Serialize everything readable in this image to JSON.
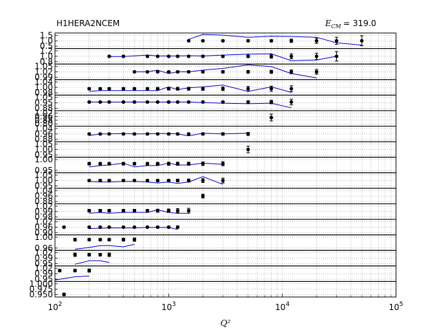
{
  "chart_data": {
    "type": "scatter",
    "title": "H1HERA2NCEM",
    "energy_label": "E_CM = 319.0",
    "energy_symbol": "E",
    "energy_subscript": "CM",
    "energy_value": "= 319.0",
    "xlabel": "Q²",
    "x_scale": "log",
    "xlim": [
      100,
      100000
    ],
    "x_ticks": [
      {
        "value": 100,
        "base": "10",
        "exp": "2"
      },
      {
        "value": 1000,
        "base": "10",
        "exp": "3"
      },
      {
        "value": 10000,
        "base": "10",
        "exp": "4"
      },
      {
        "value": 100000,
        "base": "10",
        "exp": "5"
      }
    ],
    "grid": true,
    "series_style": {
      "data": "black points with error bars",
      "theory": "blue line"
    },
    "panels": [
      {
        "ylim": [
          0.45,
          1.55
        ],
        "yticks": [
          "1.5",
          "1.0",
          "0.5"
        ],
        "x": [
          1500,
          2000,
          3000,
          5000,
          8000,
          12000,
          20000,
          30000,
          50000
        ],
        "y": [
          1.0,
          1.0,
          1.0,
          1.0,
          1.0,
          1.0,
          1.0,
          1.0,
          1.0
        ],
        "err": [
          0.04,
          0.05,
          0.06,
          0.07,
          0.08,
          0.12,
          0.18,
          0.25,
          0.35
        ],
        "theory_x": [
          1500,
          2000,
          3000,
          5000,
          8000,
          12000,
          20000,
          30000,
          50000
        ],
        "theory": [
          1.1,
          1.45,
          1.4,
          1.25,
          1.32,
          1.3,
          1.25,
          0.85,
          0.7
        ]
      },
      {
        "ylim": [
          0.75,
          1.25
        ],
        "yticks": [
          "1.2",
          "1.0",
          "0.8"
        ],
        "x": [
          300,
          400,
          650,
          800,
          1000,
          1200,
          1500,
          2000,
          3000,
          5000,
          8000,
          12000,
          20000,
          30000
        ],
        "y": [
          1.0,
          1.0,
          1.0,
          1.0,
          1.0,
          1.0,
          1.0,
          1.0,
          1.0,
          1.0,
          1.0,
          1.0,
          1.0,
          1.0
        ],
        "err": [
          0.02,
          0.02,
          0.02,
          0.02,
          0.02,
          0.02,
          0.02,
          0.03,
          0.03,
          0.04,
          0.06,
          0.08,
          0.1,
          0.15
        ],
        "theory_x": [
          300,
          400,
          650,
          800,
          1000,
          1200,
          1500,
          2000,
          3000,
          5000,
          8000,
          12000,
          20000,
          30000
        ],
        "theory": [
          0.99,
          0.99,
          1.04,
          1.01,
          1.01,
          1.01,
          1.02,
          1.01,
          1.04,
          1.07,
          1.08,
          0.86,
          0.88,
          1.0
        ]
      },
      {
        "ylim": [
          0.975,
          1.065
        ],
        "yticks": [
          "1.05",
          "1.02",
          "0.99"
        ],
        "x": [
          500,
          650,
          800,
          1000,
          1200,
          1500,
          2000,
          3000,
          5000,
          8000,
          12000,
          20000
        ],
        "y": [
          1.02,
          1.02,
          1.02,
          1.02,
          1.02,
          1.02,
          1.02,
          1.02,
          1.02,
          1.02,
          1.02,
          1.02
        ],
        "err": [
          0.003,
          0.003,
          0.004,
          0.004,
          0.005,
          0.005,
          0.006,
          0.007,
          0.008,
          0.009,
          0.011,
          0.014
        ],
        "theory_x": [
          500,
          650,
          800,
          1000,
          1200,
          1500,
          2000,
          3000,
          5000,
          8000,
          12000,
          20000
        ],
        "theory": [
          1.02,
          1.02,
          1.03,
          1.01,
          1.02,
          1.02,
          1.03,
          1.04,
          1.06,
          1.05,
          1.01,
          0.985
        ]
      },
      {
        "ylim": [
          0.965,
          1.05
        ],
        "yticks": [
          "1.04",
          "1.00",
          "0.98"
        ],
        "x": [
          200,
          250,
          300,
          400,
          500,
          650,
          800,
          1000,
          1200,
          1500,
          2000,
          3000,
          5000,
          8000,
          12000
        ],
        "y": [
          1.0,
          1.0,
          1.0,
          1.0,
          1.0,
          1.0,
          1.0,
          1.0,
          1.0,
          1.0,
          1.0,
          1.0,
          1.0,
          1.0,
          1.0
        ],
        "err": [
          0.006,
          0.006,
          0.006,
          0.006,
          0.006,
          0.006,
          0.007,
          0.007,
          0.008,
          0.008,
          0.009,
          0.01,
          0.012,
          0.014,
          0.016
        ],
        "theory_x": [
          200,
          250,
          300,
          400,
          500,
          650,
          800,
          1000,
          1200,
          1500,
          2000,
          3000,
          5000,
          8000,
          12000
        ],
        "theory": [
          0.985,
          0.99,
          0.99,
          0.99,
          0.99,
          0.99,
          0.99,
          1.01,
          0.995,
          1.005,
          1.01,
          1.02,
          0.985,
          1.01,
          0.98
        ]
      },
      {
        "ylim": [
          0.85,
          1.12
        ],
        "yticks": [
          "1.05",
          "0.95",
          "0.88"
        ],
        "x": [
          200,
          250,
          300,
          400,
          500,
          650,
          800,
          1000,
          1200,
          1500,
          2000,
          3000,
          5000,
          8000,
          12000
        ],
        "y": [
          1.0,
          1.0,
          1.0,
          1.0,
          1.0,
          1.0,
          1.0,
          1.0,
          1.0,
          1.0,
          1.0,
          1.0,
          1.0,
          1.0,
          1.0
        ],
        "err": [
          0.01,
          0.01,
          0.01,
          0.01,
          0.01,
          0.01,
          0.01,
          0.01,
          0.01,
          0.012,
          0.014,
          0.016,
          0.02,
          0.03,
          0.05
        ],
        "theory_x": [
          200,
          250,
          300,
          400,
          500,
          650,
          800,
          1000,
          1200,
          1500,
          2000,
          3000,
          5000,
          8000,
          12000
        ],
        "theory": [
          1.0,
          1.0,
          1.0,
          1.0,
          1.0,
          1.0,
          1.0,
          1.0,
          1.0,
          1.0,
          0.99,
          0.98,
          0.97,
          0.98,
          0.9
        ]
      },
      {
        "ylim": [
          0.72,
          1.08
        ],
        "yticks": [
          "1.02",
          "0.96",
          "0.88",
          "0.80"
        ],
        "x": [
          8000
        ],
        "y": [
          0.92
        ],
        "err": [
          0.08
        ],
        "theory_x": [],
        "theory": []
      },
      {
        "ylim": [
          0.86,
          1.06
        ],
        "yticks": [
          "1.04",
          "0.96",
          "0.88"
        ],
        "x": [
          200,
          250,
          300,
          400,
          500,
          650,
          800,
          1000,
          1200,
          1500,
          2000,
          3000,
          5000
        ],
        "y": [
          0.96,
          0.96,
          0.96,
          0.96,
          0.96,
          0.96,
          0.96,
          0.96,
          0.96,
          0.96,
          0.96,
          0.96,
          0.96
        ],
        "err": [
          0.01,
          0.01,
          0.01,
          0.01,
          0.01,
          0.01,
          0.01,
          0.012,
          0.012,
          0.012,
          0.014,
          0.016,
          0.02
        ],
        "theory_x": [
          200,
          250,
          300,
          400,
          500,
          650,
          800,
          1000,
          1200,
          1500,
          2000,
          3000,
          5000
        ],
        "theory": [
          0.94,
          0.96,
          0.96,
          0.965,
          0.96,
          0.96,
          0.965,
          0.965,
          0.96,
          0.935,
          0.97,
          0.96,
          0.97
        ]
      },
      {
        "ylim": [
          0.93,
          1.07
        ],
        "yticks": [
          "1.05",
          "1.00",
          "0.95"
        ],
        "x": [
          5000
        ],
        "y": [
          1.0
        ],
        "err": [
          0.03
        ],
        "theory_x": [],
        "theory": []
      },
      {
        "ylim": [
          0.93,
          1.05
        ],
        "yticks": [
          "1.00",
          "0.95"
        ],
        "x": [
          200,
          250,
          300,
          400,
          500,
          650,
          800,
          1000,
          1200,
          1500,
          2000,
          3000
        ],
        "y": [
          1.0,
          1.0,
          1.0,
          1.0,
          1.0,
          1.0,
          1.0,
          1.0,
          1.0,
          1.0,
          1.0,
          1.0
        ],
        "err": [
          0.01,
          0.01,
          0.01,
          0.01,
          0.01,
          0.01,
          0.01,
          0.012,
          0.012,
          0.012,
          0.014,
          0.016
        ],
        "theory_x": [
          200,
          250,
          300,
          400,
          500,
          650,
          800,
          1000,
          1200,
          1500,
          2000,
          3000
        ],
        "theory": [
          0.975,
          0.985,
          0.99,
          1.005,
          0.975,
          0.985,
          0.985,
          1.005,
          0.99,
          0.99,
          1.005,
          0.995
        ]
      },
      {
        "ylim": [
          0.92,
          1.08
        ],
        "yticks": [
          "1.05",
          "1.00",
          "0.95"
        ],
        "x": [
          200,
          250,
          300,
          400,
          500,
          650,
          800,
          1000,
          1200,
          1500,
          2000,
          3000
        ],
        "y": [
          1.0,
          1.0,
          1.0,
          1.0,
          1.0,
          1.0,
          1.0,
          1.0,
          1.0,
          1.0,
          1.0,
          1.0
        ],
        "err": [
          0.01,
          0.01,
          0.01,
          0.01,
          0.01,
          0.01,
          0.012,
          0.012,
          0.014,
          0.016,
          0.02,
          0.025
        ],
        "theory_x": [
          200,
          250,
          300,
          400,
          500,
          650,
          800,
          1000,
          1200,
          1500,
          2000,
          3000
        ],
        "theory": [
          0.99,
          0.985,
          0.985,
          0.99,
          0.99,
          0.985,
          0.975,
          0.985,
          0.97,
          0.985,
          1.04,
          0.96
        ]
      },
      {
        "ylim": [
          0.84,
          1.08
        ],
        "yticks": [
          "1.04",
          "0.96",
          "0.88"
        ],
        "x": [
          2000
        ],
        "y": [
          0.96
        ],
        "err": [
          0.03
        ],
        "theory_x": [],
        "theory": []
      },
      {
        "ylim": [
          0.95,
          1.04
        ],
        "yticks": [
          "1.02",
          "0.99",
          "0.98"
        ],
        "x": [
          200,
          250,
          300,
          400,
          500,
          650,
          800,
          1000,
          1200,
          1500
        ],
        "y": [
          1.0,
          1.0,
          1.0,
          1.0,
          1.0,
          1.0,
          1.0,
          1.0,
          1.0,
          1.0
        ],
        "err": [
          0.008,
          0.008,
          0.008,
          0.008,
          0.008,
          0.008,
          0.009,
          0.01,
          0.012,
          0.014
        ],
        "theory_x": [
          200,
          250,
          300,
          400,
          500,
          650,
          800,
          1000,
          1200,
          1500
        ],
        "theory": [
          0.985,
          0.99,
          0.985,
          0.99,
          0.99,
          0.99,
          1.005,
          0.99,
          0.985,
          0.985
        ]
      },
      {
        "ylim": [
          0.88,
          1.08
        ],
        "yticks": [
          "1.02",
          "0.96",
          "0.90"
        ],
        "x": [
          120,
          200,
          250,
          300,
          400,
          500,
          650,
          800,
          1000,
          1200
        ],
        "y": [
          0.98,
          0.98,
          0.98,
          0.98,
          0.98,
          0.98,
          0.98,
          0.98,
          0.98,
          0.98
        ],
        "err": [
          0.01,
          0.008,
          0.008,
          0.008,
          0.008,
          0.008,
          0.008,
          0.01,
          0.012,
          0.014
        ],
        "theory_x": [
          200,
          250,
          300,
          400,
          500,
          650,
          800,
          1000,
          1200
        ],
        "theory": [
          0.96,
          0.965,
          0.97,
          0.97,
          0.97,
          0.975,
          0.975,
          0.975,
          0.95
        ]
      },
      {
        "ylim": [
          0.91,
          1.04
        ],
        "yticks": [
          "1.00",
          "0.96"
        ],
        "x": [
          150,
          200,
          250,
          300,
          400,
          500
        ],
        "y": [
          1.0,
          1.0,
          1.0,
          1.0,
          1.0,
          1.0
        ],
        "err": [
          0.012,
          0.01,
          0.01,
          0.01,
          0.012,
          0.014
        ],
        "theory_x": [
          150,
          200,
          250,
          300,
          400,
          500
        ],
        "theory": [
          0.92,
          0.935,
          0.95,
          0.95,
          0.94,
          0.96
        ]
      },
      {
        "ylim": [
          0.87,
          1.05
        ],
        "yticks": [
          "1.02",
          "0.99",
          "0.95"
        ],
        "x": [
          150,
          200,
          250,
          300
        ],
        "y": [
          1.0,
          1.0,
          1.0,
          1.0
        ],
        "err": [
          0.02,
          0.015,
          0.015,
          0.02
        ],
        "theory_x": [
          150,
          200,
          250,
          300
        ],
        "theory": [
          0.89,
          0.93,
          0.93,
          0.91
        ]
      },
      {
        "ylim": [
          0.86,
          1.06
        ],
        "yticks": [
          "1.02",
          "0.99",
          "0.95"
        ],
        "x": [
          110,
          150,
          200
        ],
        "y": [
          1.0,
          1.0,
          1.0
        ],
        "err": [
          0.015,
          0.015,
          0.02
        ],
        "theory_x": [
          100,
          150,
          200
        ],
        "theory": [
          0.88,
          0.92,
          0.93
        ]
      },
      {
        "ylim": [
          0.94,
          1.06
        ],
        "yticks": [
          "1.000",
          "0.975",
          "0.950"
        ],
        "x": [
          120
        ],
        "y": [
          0.96
        ],
        "err": [
          0.01
        ],
        "theory_x": [],
        "theory": []
      }
    ]
  }
}
